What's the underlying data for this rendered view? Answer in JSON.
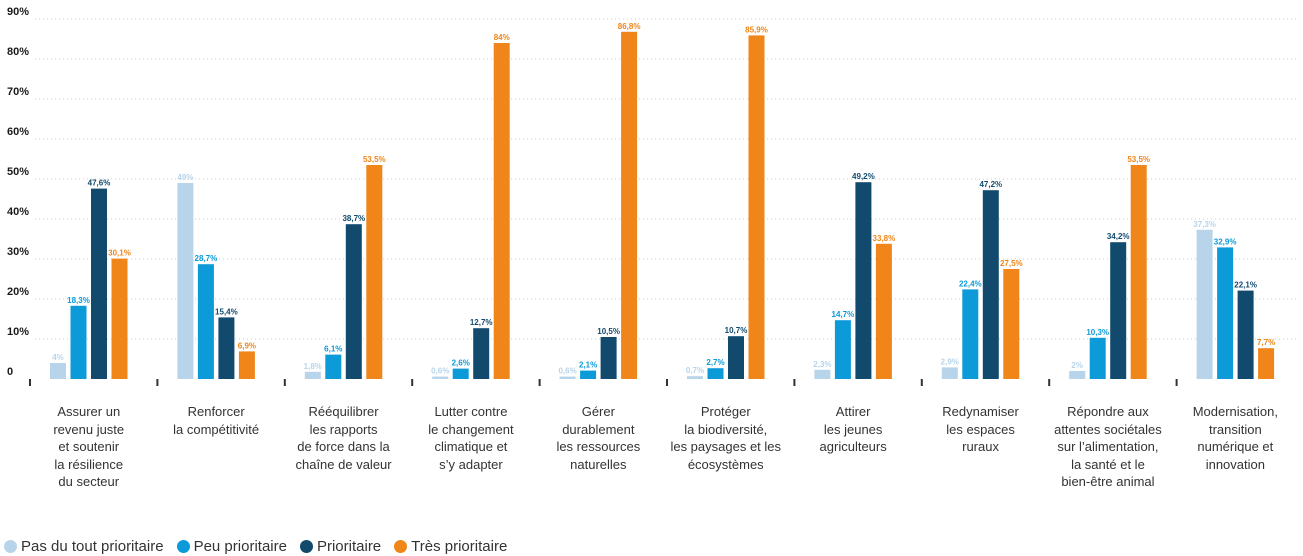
{
  "chart_data": {
    "type": "bar",
    "ylim": [
      0,
      90
    ],
    "yticks": [
      0,
      10,
      20,
      30,
      40,
      50,
      60,
      70,
      80,
      90
    ],
    "ytick_labels": [
      "0",
      "10%",
      "20%",
      "30%",
      "40%",
      "50%",
      "60%",
      "70%",
      "80%",
      "90%"
    ],
    "grid": true,
    "legend_position": "bottom-left",
    "categories": [
      [
        "Assurer un",
        "revenu juste",
        "et soutenir",
        "la résilience",
        "du secteur"
      ],
      [
        "Renforcer",
        "la compétitivité"
      ],
      [
        "Rééquilibrer",
        "les rapports",
        "de force dans la",
        "chaîne de valeur"
      ],
      [
        "Lutter contre",
        "le changement",
        "climatique et",
        "s’y adapter"
      ],
      [
        "Gérer",
        "durablement",
        "les ressources",
        "naturelles"
      ],
      [
        "Protéger",
        "la biodiversité,",
        "les paysages et les",
        "écosystèmes"
      ],
      [
        "Attirer",
        "les jeunes",
        "agriculteurs"
      ],
      [
        "Redynamiser",
        "les espaces",
        "ruraux"
      ],
      [
        "Répondre aux",
        "attentes sociétales",
        "sur l’alimentation,",
        "la santé et le",
        "bien-être animal"
      ],
      [
        "Modernisation,",
        "transition",
        "numérique et",
        "innovation"
      ]
    ],
    "series": [
      {
        "name": "Pas du tout prioritaire",
        "color": "#b8d4ea",
        "values": [
          4,
          49,
          1.8,
          0.6,
          0.6,
          0.7,
          2.3,
          2.9,
          2,
          37.3
        ],
        "labels": [
          "4%",
          "49%",
          "1,8%",
          "0,6%",
          "0,6%",
          "0,7%",
          "2,3%",
          "2,9%",
          "2%",
          "37,3%"
        ]
      },
      {
        "name": "Peu prioritaire",
        "color": "#0d9ad8",
        "values": [
          18.3,
          28.7,
          6.1,
          2.6,
          2.1,
          2.7,
          14.7,
          22.4,
          10.3,
          32.9
        ],
        "labels": [
          "18,3%",
          "28,7%",
          "6,1%",
          "2,6%",
          "2,1%",
          "2,7%",
          "14,7%",
          "22,4%",
          "10,3%",
          "32,9%"
        ]
      },
      {
        "name": "Prioritaire",
        "color": "#114a6d",
        "values": [
          47.6,
          15.4,
          38.7,
          12.7,
          10.5,
          10.7,
          49.2,
          47.2,
          34.2,
          22.1
        ],
        "labels": [
          "47,6%",
          "15,4%",
          "38,7%",
          "12,7%",
          "10,5%",
          "10,7%",
          "49,2%",
          "47,2%",
          "34,2%",
          "22,1%"
        ]
      },
      {
        "name": "Très prioritaire",
        "color": "#f08519",
        "values": [
          30.1,
          6.9,
          53.5,
          84,
          86.8,
          85.9,
          33.8,
          27.5,
          53.5,
          7.7
        ],
        "labels": [
          "30,1%",
          "6,9%",
          "53,5%",
          "84%",
          "86,8%",
          "85,9%",
          "33,8%",
          "27,5%",
          "53,5%",
          "7,7%"
        ]
      }
    ]
  }
}
